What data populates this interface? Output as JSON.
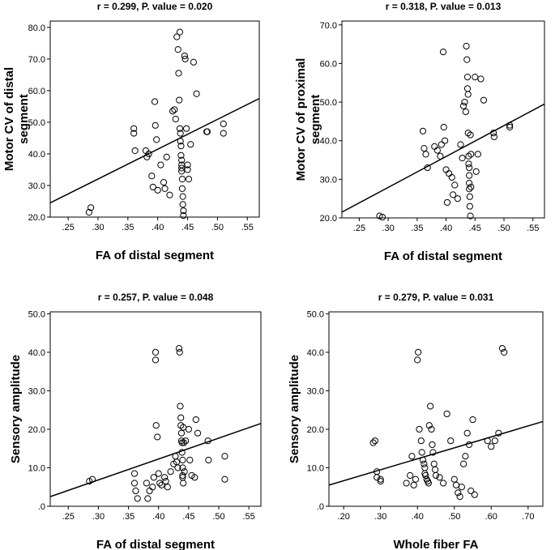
{
  "chart_data": [
    {
      "type": "scatter",
      "title": "r = 0.299, P. value = 0.020",
      "xlabel": "FA of distal segment",
      "ylabel": [
        "Motor CV of distal",
        "segment"
      ],
      "xlim": [
        0.22,
        0.57
      ],
      "ylim": [
        20,
        82
      ],
      "xticks": [
        0.25,
        0.3,
        0.35,
        0.4,
        0.45,
        0.5,
        0.55
      ],
      "xtick_labels": [
        ".25",
        ".30",
        ".35",
        ".40",
        ".45",
        ".50",
        ".55"
      ],
      "yticks": [
        20,
        30,
        40,
        50,
        60,
        70,
        80
      ],
      "ytick_labels": [
        "20.0",
        "30.0",
        "40.0",
        "50.0",
        "60.0",
        "70.0",
        "80.0"
      ],
      "fit_line": {
        "x": [
          0.22,
          0.57
        ],
        "y": [
          24.5,
          57.5
        ]
      },
      "points": [
        [
          0.285,
          21.5
        ],
        [
          0.288,
          23
        ],
        [
          0.36,
          48
        ],
        [
          0.36,
          46.5
        ],
        [
          0.362,
          41
        ],
        [
          0.38,
          41
        ],
        [
          0.382,
          39
        ],
        [
          0.385,
          40
        ],
        [
          0.39,
          33
        ],
        [
          0.392,
          29.5
        ],
        [
          0.395,
          56.5
        ],
        [
          0.396,
          49
        ],
        [
          0.398,
          44.5
        ],
        [
          0.4,
          28.5
        ],
        [
          0.405,
          36.5
        ],
        [
          0.41,
          31
        ],
        [
          0.412,
          29
        ],
        [
          0.415,
          39
        ],
        [
          0.42,
          27
        ],
        [
          0.425,
          53.5
        ],
        [
          0.428,
          54
        ],
        [
          0.43,
          51
        ],
        [
          0.432,
          77
        ],
        [
          0.434,
          73
        ],
        [
          0.435,
          65.5
        ],
        [
          0.436,
          57
        ],
        [
          0.437,
          48
        ],
        [
          0.438,
          46.5
        ],
        [
          0.438,
          44
        ],
        [
          0.439,
          42.5
        ],
        [
          0.439,
          39.5
        ],
        [
          0.44,
          38
        ],
        [
          0.44,
          36.5
        ],
        [
          0.44,
          35.5
        ],
        [
          0.44,
          34.5
        ],
        [
          0.441,
          32
        ],
        [
          0.441,
          29
        ],
        [
          0.442,
          26.5
        ],
        [
          0.442,
          24
        ],
        [
          0.443,
          22
        ],
        [
          0.443,
          20.5
        ],
        [
          0.437,
          78.5
        ],
        [
          0.445,
          71
        ],
        [
          0.446,
          70
        ],
        [
          0.448,
          48
        ],
        [
          0.45,
          36.5
        ],
        [
          0.45,
          35
        ],
        [
          0.452,
          32
        ],
        [
          0.455,
          43
        ],
        [
          0.46,
          69
        ],
        [
          0.465,
          59
        ],
        [
          0.482,
          47
        ],
        [
          0.483,
          47
        ],
        [
          0.51,
          49.5
        ],
        [
          0.51,
          46.5
        ]
      ]
    },
    {
      "type": "scatter",
      "title": "r = 0.318, P. value = 0.013",
      "xlabel": "FA of distal segment",
      "ylabel": [
        "Motor CV of proximal",
        "segment"
      ],
      "xlim": [
        0.22,
        0.57
      ],
      "ylim": [
        20,
        71
      ],
      "xticks": [
        0.25,
        0.3,
        0.35,
        0.4,
        0.45,
        0.5,
        0.55
      ],
      "xtick_labels": [
        ".25",
        ".30",
        ".35",
        ".40",
        ".45",
        ".50",
        ".55"
      ],
      "yticks": [
        20,
        30,
        40,
        50,
        60,
        70
      ],
      "ytick_labels": [
        "20.0",
        "30.0",
        "40.0",
        "50.0",
        "60.0",
        "70.0"
      ],
      "fit_line": {
        "x": [
          0.22,
          0.57
        ],
        "y": [
          21.5,
          49.5
        ]
      },
      "points": [
        [
          0.285,
          20.5
        ],
        [
          0.29,
          20.2
        ],
        [
          0.36,
          42.5
        ],
        [
          0.362,
          38
        ],
        [
          0.365,
          36.5
        ],
        [
          0.368,
          33
        ],
        [
          0.38,
          38.5
        ],
        [
          0.385,
          37.5
        ],
        [
          0.39,
          36
        ],
        [
          0.392,
          39
        ],
        [
          0.395,
          63
        ],
        [
          0.396,
          43.5
        ],
        [
          0.398,
          40
        ],
        [
          0.4,
          32.5
        ],
        [
          0.402,
          24
        ],
        [
          0.405,
          31.5
        ],
        [
          0.41,
          30.5
        ],
        [
          0.412,
          26
        ],
        [
          0.415,
          28.5
        ],
        [
          0.42,
          25
        ],
        [
          0.425,
          39
        ],
        [
          0.428,
          35.5
        ],
        [
          0.43,
          49
        ],
        [
          0.432,
          50
        ],
        [
          0.434,
          47.5
        ],
        [
          0.435,
          64.5
        ],
        [
          0.436,
          61
        ],
        [
          0.437,
          56.5
        ],
        [
          0.437,
          53.5
        ],
        [
          0.438,
          52
        ],
        [
          0.438,
          42
        ],
        [
          0.439,
          36
        ],
        [
          0.439,
          34
        ],
        [
          0.44,
          33
        ],
        [
          0.44,
          31
        ],
        [
          0.44,
          29
        ],
        [
          0.44,
          27.5
        ],
        [
          0.441,
          25.5
        ],
        [
          0.441,
          23
        ],
        [
          0.442,
          20.5
        ],
        [
          0.442,
          41.5
        ],
        [
          0.443,
          36.5
        ],
        [
          0.443,
          28
        ],
        [
          0.45,
          56.5
        ],
        [
          0.452,
          32
        ],
        [
          0.455,
          36.5
        ],
        [
          0.46,
          56
        ],
        [
          0.465,
          50.5
        ],
        [
          0.482,
          42
        ],
        [
          0.483,
          41
        ],
        [
          0.51,
          44
        ],
        [
          0.51,
          43.5
        ]
      ]
    },
    {
      "type": "scatter",
      "title": "r = 0.257, P. value = 0.048",
      "xlabel": "FA of distal segment",
      "ylabel": [
        "Sensory amplitude"
      ],
      "xlim": [
        0.22,
        0.57
      ],
      "ylim": [
        0,
        50.5
      ],
      "xticks": [
        0.25,
        0.3,
        0.35,
        0.4,
        0.45,
        0.5,
        0.55
      ],
      "xtick_labels": [
        ".25",
        ".30",
        ".35",
        ".40",
        ".45",
        ".50",
        ".55"
      ],
      "yticks": [
        0,
        10,
        20,
        30,
        40,
        50
      ],
      "ytick_labels": [
        ".0",
        "10.0",
        "20.0",
        "30.0",
        "40.0",
        "50.0"
      ],
      "fit_line": {
        "x": [
          0.22,
          0.57
        ],
        "y": [
          2.5,
          21.5
        ]
      },
      "points": [
        [
          0.285,
          6.5
        ],
        [
          0.29,
          7
        ],
        [
          0.36,
          8.5
        ],
        [
          0.36,
          6
        ],
        [
          0.362,
          4
        ],
        [
          0.365,
          2
        ],
        [
          0.38,
          6
        ],
        [
          0.382,
          2
        ],
        [
          0.385,
          4
        ],
        [
          0.39,
          5
        ],
        [
          0.392,
          7.5
        ],
        [
          0.395,
          40
        ],
        [
          0.395,
          38
        ],
        [
          0.396,
          21
        ],
        [
          0.398,
          18
        ],
        [
          0.4,
          8.5
        ],
        [
          0.402,
          6
        ],
        [
          0.405,
          5.5
        ],
        [
          0.41,
          7.5
        ],
        [
          0.412,
          6.5
        ],
        [
          0.415,
          5
        ],
        [
          0.42,
          9
        ],
        [
          0.425,
          11
        ],
        [
          0.428,
          13
        ],
        [
          0.43,
          11.5
        ],
        [
          0.432,
          10
        ],
        [
          0.434,
          41
        ],
        [
          0.435,
          40
        ],
        [
          0.436,
          26
        ],
        [
          0.437,
          23
        ],
        [
          0.437,
          21
        ],
        [
          0.438,
          19
        ],
        [
          0.438,
          17
        ],
        [
          0.439,
          16.5
        ],
        [
          0.439,
          14
        ],
        [
          0.44,
          12
        ],
        [
          0.44,
          10
        ],
        [
          0.44,
          8
        ],
        [
          0.44,
          7.5
        ],
        [
          0.441,
          6
        ],
        [
          0.441,
          20.5
        ],
        [
          0.442,
          16.5
        ],
        [
          0.443,
          9
        ],
        [
          0.445,
          17
        ],
        [
          0.45,
          20
        ],
        [
          0.452,
          12
        ],
        [
          0.455,
          8
        ],
        [
          0.46,
          7.5
        ],
        [
          0.462,
          22.5
        ],
        [
          0.465,
          19
        ],
        [
          0.482,
          17
        ],
        [
          0.483,
          12
        ],
        [
          0.51,
          13
        ],
        [
          0.51,
          7
        ]
      ]
    },
    {
      "type": "scatter",
      "title": "r = 0.279, P. value = 0.031",
      "xlabel": "Whole fiber FA",
      "ylabel": [
        "Sensory amplitude"
      ],
      "xlim": [
        0.16,
        0.74
      ],
      "ylim": [
        0,
        50.5
      ],
      "xticks": [
        0.2,
        0.3,
        0.4,
        0.5,
        0.6,
        0.7
      ],
      "xtick_labels": [
        ".20",
        ".30",
        ".40",
        ".50",
        ".60",
        ".70"
      ],
      "yticks": [
        0,
        10,
        20,
        30,
        40,
        50
      ],
      "ytick_labels": [
        ".0",
        "10.0",
        "20.0",
        "30.0",
        "40.0",
        "50.0"
      ],
      "fit_line": {
        "x": [
          0.16,
          0.74
        ],
        "y": [
          5.5,
          22
        ]
      },
      "points": [
        [
          0.28,
          16.5
        ],
        [
          0.285,
          17
        ],
        [
          0.29,
          9
        ],
        [
          0.29,
          7.5
        ],
        [
          0.3,
          6.5
        ],
        [
          0.3,
          7
        ],
        [
          0.37,
          6
        ],
        [
          0.38,
          8
        ],
        [
          0.385,
          13
        ],
        [
          0.39,
          5.5
        ],
        [
          0.395,
          7
        ],
        [
          0.4,
          38
        ],
        [
          0.402,
          40
        ],
        [
          0.405,
          20
        ],
        [
          0.41,
          17
        ],
        [
          0.412,
          14
        ],
        [
          0.415,
          12
        ],
        [
          0.418,
          11
        ],
        [
          0.42,
          10
        ],
        [
          0.42,
          8.5
        ],
        [
          0.422,
          8
        ],
        [
          0.425,
          7
        ],
        [
          0.428,
          6.5
        ],
        [
          0.43,
          6
        ],
        [
          0.432,
          21
        ],
        [
          0.435,
          26
        ],
        [
          0.438,
          20
        ],
        [
          0.44,
          16
        ],
        [
          0.442,
          14
        ],
        [
          0.445,
          11
        ],
        [
          0.448,
          9.5
        ],
        [
          0.45,
          8
        ],
        [
          0.46,
          7.5
        ],
        [
          0.47,
          6
        ],
        [
          0.48,
          24
        ],
        [
          0.49,
          17
        ],
        [
          0.5,
          7
        ],
        [
          0.505,
          5.5
        ],
        [
          0.51,
          3.5
        ],
        [
          0.515,
          2.5
        ],
        [
          0.52,
          5
        ],
        [
          0.525,
          11
        ],
        [
          0.53,
          13
        ],
        [
          0.535,
          19
        ],
        [
          0.54,
          16
        ],
        [
          0.545,
          4
        ],
        [
          0.55,
          22.5
        ],
        [
          0.555,
          3
        ],
        [
          0.59,
          17
        ],
        [
          0.6,
          15.5
        ],
        [
          0.61,
          17
        ],
        [
          0.62,
          19
        ],
        [
          0.63,
          41
        ],
        [
          0.635,
          40
        ]
      ]
    }
  ]
}
